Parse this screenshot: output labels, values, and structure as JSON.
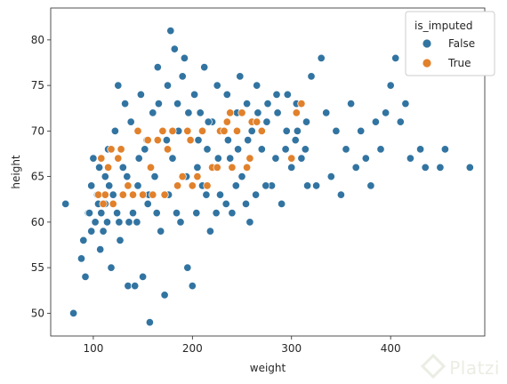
{
  "chart_data": {
    "type": "scatter",
    "title": "",
    "xlabel": "weight",
    "ylabel": "height",
    "xlim": [
      57,
      495
    ],
    "ylim": [
      47.5,
      83.5
    ],
    "xticks": [
      100,
      200,
      300,
      400
    ],
    "yticks": [
      50,
      55,
      60,
      65,
      70,
      75,
      80
    ],
    "grid": false,
    "legend": {
      "title": "is_imputed",
      "placement": "top-right"
    },
    "series": [
      {
        "name": "False",
        "color": "#3274a1",
        "points": [
          [
            72,
            62
          ],
          [
            80,
            50
          ],
          [
            88,
            56
          ],
          [
            90,
            58
          ],
          [
            92,
            54
          ],
          [
            95,
            61
          ],
          [
            98,
            64
          ],
          [
            100,
            67
          ],
          [
            102,
            60
          ],
          [
            105,
            62
          ],
          [
            107,
            57
          ],
          [
            110,
            59
          ],
          [
            112,
            65
          ],
          [
            115,
            68
          ],
          [
            118,
            55
          ],
          [
            120,
            63
          ],
          [
            122,
            70
          ],
          [
            125,
            75
          ],
          [
            127,
            58
          ],
          [
            130,
            66
          ],
          [
            132,
            73
          ],
          [
            135,
            53
          ],
          [
            138,
            71
          ],
          [
            140,
            61
          ],
          [
            142,
            53
          ],
          [
            145,
            64
          ],
          [
            148,
            74
          ],
          [
            150,
            54
          ],
          [
            152,
            68
          ],
          [
            155,
            62
          ],
          [
            157,
            49
          ],
          [
            160,
            72
          ],
          [
            162,
            65
          ],
          [
            165,
            77
          ],
          [
            168,
            59
          ],
          [
            170,
            70
          ],
          [
            172,
            52
          ],
          [
            175,
            75
          ],
          [
            178,
            81
          ],
          [
            180,
            67
          ],
          [
            182,
            79
          ],
          [
            185,
            73
          ],
          [
            188,
            60
          ],
          [
            190,
            76
          ],
          [
            192,
            78
          ],
          [
            195,
            55
          ],
          [
            198,
            69
          ],
          [
            200,
            53
          ],
          [
            202,
            74
          ],
          [
            205,
            66
          ],
          [
            208,
            72
          ],
          [
            210,
            64
          ],
          [
            212,
            77
          ],
          [
            215,
            68
          ],
          [
            218,
            59
          ],
          [
            220,
            71
          ],
          [
            225,
            75
          ],
          [
            228,
            63
          ],
          [
            230,
            70
          ],
          [
            235,
            74
          ],
          [
            238,
            67
          ],
          [
            240,
            61
          ],
          [
            245,
            72
          ],
          [
            248,
            76
          ],
          [
            250,
            65
          ],
          [
            255,
            73
          ],
          [
            258,
            60
          ],
          [
            260,
            70
          ],
          [
            265,
            75
          ],
          [
            270,
            68
          ],
          [
            275,
            71
          ],
          [
            280,
            64
          ],
          [
            285,
            74
          ],
          [
            290,
            62
          ],
          [
            295,
            70
          ],
          [
            300,
            66
          ],
          [
            305,
            73
          ],
          [
            310,
            67
          ],
          [
            315,
            71
          ],
          [
            320,
            76
          ],
          [
            325,
            64
          ],
          [
            330,
            78
          ],
          [
            335,
            72
          ],
          [
            340,
            65
          ],
          [
            345,
            70
          ],
          [
            350,
            63
          ],
          [
            355,
            68
          ],
          [
            360,
            73
          ],
          [
            365,
            66
          ],
          [
            370,
            70
          ],
          [
            375,
            67
          ],
          [
            380,
            64
          ],
          [
            385,
            71
          ],
          [
            390,
            68
          ],
          [
            395,
            72
          ],
          [
            400,
            75
          ],
          [
            405,
            78
          ],
          [
            410,
            71
          ],
          [
            415,
            73
          ],
          [
            420,
            67
          ],
          [
            430,
            68
          ],
          [
            435,
            66
          ],
          [
            450,
            66
          ],
          [
            455,
            68
          ],
          [
            480,
            66
          ],
          [
            96,
            61
          ],
          [
            98,
            59
          ],
          [
            104,
            63
          ],
          [
            106,
            66
          ],
          [
            108,
            61
          ],
          [
            112,
            62
          ],
          [
            114,
            60
          ],
          [
            116,
            64
          ],
          [
            124,
            61
          ],
          [
            126,
            60
          ],
          [
            128,
            68
          ],
          [
            134,
            65
          ],
          [
            136,
            60
          ],
          [
            144,
            60
          ],
          [
            146,
            67
          ],
          [
            154,
            69
          ],
          [
            156,
            63
          ],
          [
            164,
            61
          ],
          [
            166,
            73
          ],
          [
            174,
            69
          ],
          [
            176,
            63
          ],
          [
            184,
            61
          ],
          [
            186,
            70
          ],
          [
            194,
            65
          ],
          [
            196,
            72
          ],
          [
            204,
            61
          ],
          [
            206,
            69
          ],
          [
            214,
            63
          ],
          [
            216,
            71
          ],
          [
            224,
            61
          ],
          [
            226,
            67
          ],
          [
            234,
            62
          ],
          [
            236,
            69
          ],
          [
            244,
            64
          ],
          [
            246,
            68
          ],
          [
            254,
            62
          ],
          [
            256,
            69
          ],
          [
            264,
            63
          ],
          [
            266,
            72
          ],
          [
            274,
            64
          ],
          [
            276,
            73
          ],
          [
            284,
            67
          ],
          [
            286,
            72
          ],
          [
            294,
            68
          ],
          [
            296,
            74
          ],
          [
            304,
            69
          ],
          [
            306,
            70
          ],
          [
            314,
            68
          ],
          [
            316,
            64
          ]
        ]
      },
      {
        "name": "True",
        "color": "#e1812c",
        "points": [
          [
            105,
            63
          ],
          [
            108,
            67
          ],
          [
            110,
            62
          ],
          [
            112,
            63
          ],
          [
            115,
            66
          ],
          [
            118,
            68
          ],
          [
            120,
            62
          ],
          [
            125,
            67
          ],
          [
            128,
            68
          ],
          [
            130,
            63
          ],
          [
            135,
            64
          ],
          [
            140,
            63
          ],
          [
            145,
            70
          ],
          [
            150,
            63
          ],
          [
            155,
            69
          ],
          [
            158,
            66
          ],
          [
            160,
            63
          ],
          [
            165,
            69
          ],
          [
            170,
            70
          ],
          [
            172,
            63
          ],
          [
            175,
            68
          ],
          [
            180,
            70
          ],
          [
            185,
            64
          ],
          [
            190,
            65
          ],
          [
            195,
            70
          ],
          [
            198,
            69
          ],
          [
            200,
            64
          ],
          [
            205,
            65
          ],
          [
            210,
            70
          ],
          [
            215,
            64
          ],
          [
            220,
            66
          ],
          [
            225,
            66
          ],
          [
            228,
            70
          ],
          [
            232,
            70
          ],
          [
            235,
            71
          ],
          [
            238,
            72
          ],
          [
            240,
            66
          ],
          [
            245,
            70
          ],
          [
            250,
            72
          ],
          [
            255,
            66
          ],
          [
            258,
            67
          ],
          [
            260,
            71
          ],
          [
            265,
            71
          ],
          [
            270,
            70
          ],
          [
            300,
            67
          ],
          [
            305,
            72
          ],
          [
            310,
            73
          ]
        ]
      }
    ]
  }
}
